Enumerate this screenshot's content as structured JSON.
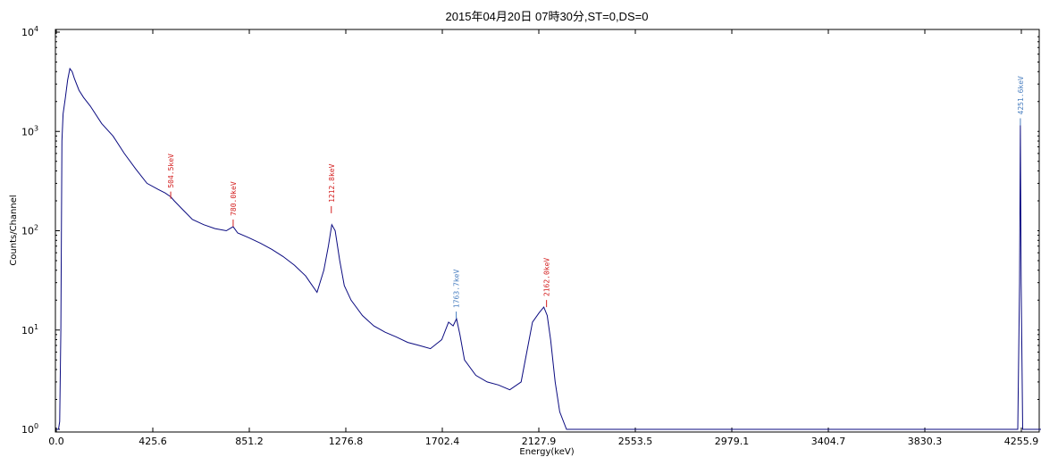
{
  "chart_data": {
    "type": "line",
    "title": "2015年04月20日 07時30分,ST=0,DS=0",
    "xlabel": "Energy(keV)",
    "ylabel": "Counts/Channel",
    "xlim": [
      0.0,
      4350
    ],
    "ylim": [
      1,
      10000
    ],
    "y_scale": "log",
    "x_ticks": [
      0.0,
      425.6,
      851.2,
      1276.8,
      1702.4,
      2127.9,
      2553.5,
      2979.1,
      3404.7,
      3830.3,
      4255.9
    ],
    "x_tick_labels": [
      "0.0",
      "425.6",
      "851.2",
      "1276.8",
      "1702.4",
      "2127.9",
      "2553.5",
      "2979.1",
      "3404.7",
      "3830.3",
      "4255.9"
    ],
    "y_ticks": [
      1,
      10,
      100,
      1000,
      10000
    ],
    "y_tick_labels": [
      {
        "base": "10",
        "exp": "0"
      },
      {
        "base": "10",
        "exp": "1"
      },
      {
        "base": "10",
        "exp": "2"
      },
      {
        "base": "10",
        "exp": "3"
      },
      {
        "base": "10",
        "exp": "4"
      }
    ],
    "peaks": [
      {
        "label": "504.5keV",
        "x": 504.5,
        "y": 210,
        "color": "#d42020"
      },
      {
        "label": "780.0keV",
        "x": 780.0,
        "y": 110,
        "color": "#d42020"
      },
      {
        "label": "1212.8keV",
        "x": 1212.8,
        "y": 150,
        "color": "#d42020"
      },
      {
        "label": "1763.7keV",
        "x": 1763.7,
        "y": 13,
        "color": "#4a7fc0"
      },
      {
        "label": "2162.0keV",
        "x": 2162.0,
        "y": 17,
        "color": "#d42020"
      },
      {
        "label": "4251.6keV",
        "x": 4251.6,
        "y": 1150,
        "color": "#4a7fc0"
      }
    ],
    "series": [
      {
        "color": "#0a0a80",
        "x": [
          0,
          5,
          10,
          15,
          20,
          25,
          30,
          40,
          50,
          60,
          70,
          80,
          100,
          120,
          150,
          200,
          250,
          300,
          350,
          400,
          450,
          480,
          504,
          520,
          550,
          600,
          650,
          700,
          750,
          780,
          800,
          850,
          900,
          950,
          1000,
          1050,
          1100,
          1120,
          1150,
          1180,
          1200,
          1215,
          1230,
          1250,
          1270,
          1300,
          1350,
          1400,
          1450,
          1500,
          1550,
          1600,
          1650,
          1700,
          1730,
          1750,
          1765,
          1780,
          1800,
          1850,
          1900,
          1950,
          2000,
          2050,
          2100,
          2130,
          2150,
          2165,
          2180,
          2200,
          2220,
          2250,
          2280,
          2300,
          2350,
          2400,
          2500,
          2600,
          2700,
          2800,
          2900,
          3000,
          3100,
          3200,
          3300,
          3400,
          3500,
          3600,
          3700,
          3800,
          3900,
          4000,
          4100,
          4200,
          4240,
          4248,
          4251.6,
          4255,
          4262,
          4300,
          4350
        ],
        "y": [
          1,
          1,
          1,
          1.2,
          10,
          800,
          1500,
          2200,
          3300,
          4300,
          4000,
          3400,
          2600,
          2200,
          1800,
          1200,
          900,
          600,
          420,
          300,
          260,
          240,
          220,
          200,
          170,
          130,
          115,
          105,
          100,
          110,
          95,
          85,
          75,
          65,
          55,
          45,
          35,
          30,
          24,
          40,
          70,
          115,
          100,
          50,
          28,
          20,
          14,
          11,
          9.5,
          8.5,
          7.5,
          7,
          6.5,
          8,
          12,
          11,
          13,
          9,
          5,
          3.5,
          3,
          2.8,
          2.5,
          3,
          12,
          15,
          17,
          14,
          8,
          3,
          1.5,
          1,
          1,
          1,
          1,
          1,
          1,
          1,
          1,
          1,
          1,
          1,
          1,
          1,
          1,
          1,
          1,
          1,
          1,
          1,
          1,
          1,
          1,
          1,
          1,
          30,
          1150,
          30,
          1,
          1,
          1
        ]
      }
    ]
  }
}
